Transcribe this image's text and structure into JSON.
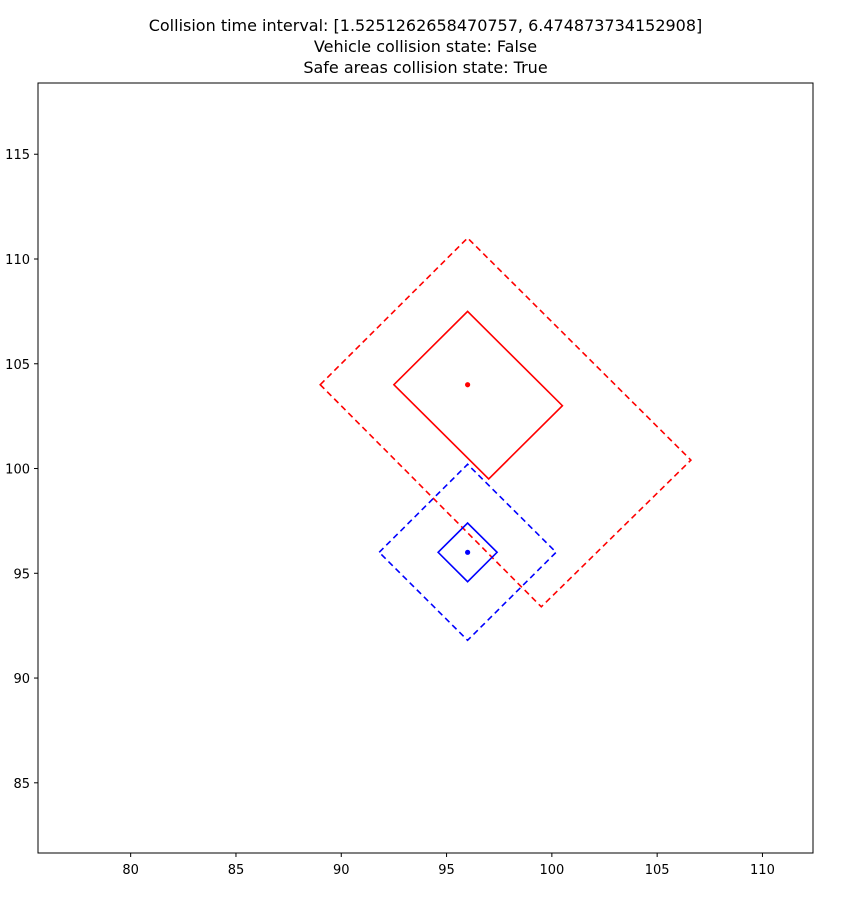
{
  "chart_data": {
    "type": "scatter",
    "title_lines": [
      "Collision time interval: [1.5251262658470757, 6.474873734152908]",
      "Vehicle collision state: False",
      "Safe areas collision state: True"
    ],
    "xlabel": "",
    "ylabel": "",
    "xlim": [
      75.6,
      112.4
    ],
    "ylim": [
      81.65,
      118.4
    ],
    "xticks": [
      80,
      85,
      90,
      95,
      100,
      105,
      110
    ],
    "yticks": [
      85,
      90,
      95,
      100,
      105,
      110,
      115
    ],
    "grid": false,
    "series": [
      {
        "color": "#ff0000",
        "center": [
          96,
          104
        ],
        "vehicle": [
          [
            92.5,
            104
          ],
          [
            96,
            107.5
          ],
          [
            100.5,
            103
          ],
          [
            97,
            99.5
          ]
        ],
        "safe_area": [
          [
            89,
            104
          ],
          [
            96,
            111
          ],
          [
            106.6,
            100.4
          ],
          [
            99.5,
            93.4
          ]
        ]
      },
      {
        "color": "#0000ff",
        "center": [
          96,
          96
        ],
        "vehicle": [
          [
            94.6,
            96
          ],
          [
            96,
            97.4
          ],
          [
            97.4,
            96
          ],
          [
            96,
            94.6
          ]
        ],
        "safe_area": [
          [
            91.8,
            96
          ],
          [
            96,
            100.2
          ],
          [
            100.2,
            96
          ],
          [
            96,
            91.8
          ]
        ]
      }
    ]
  }
}
